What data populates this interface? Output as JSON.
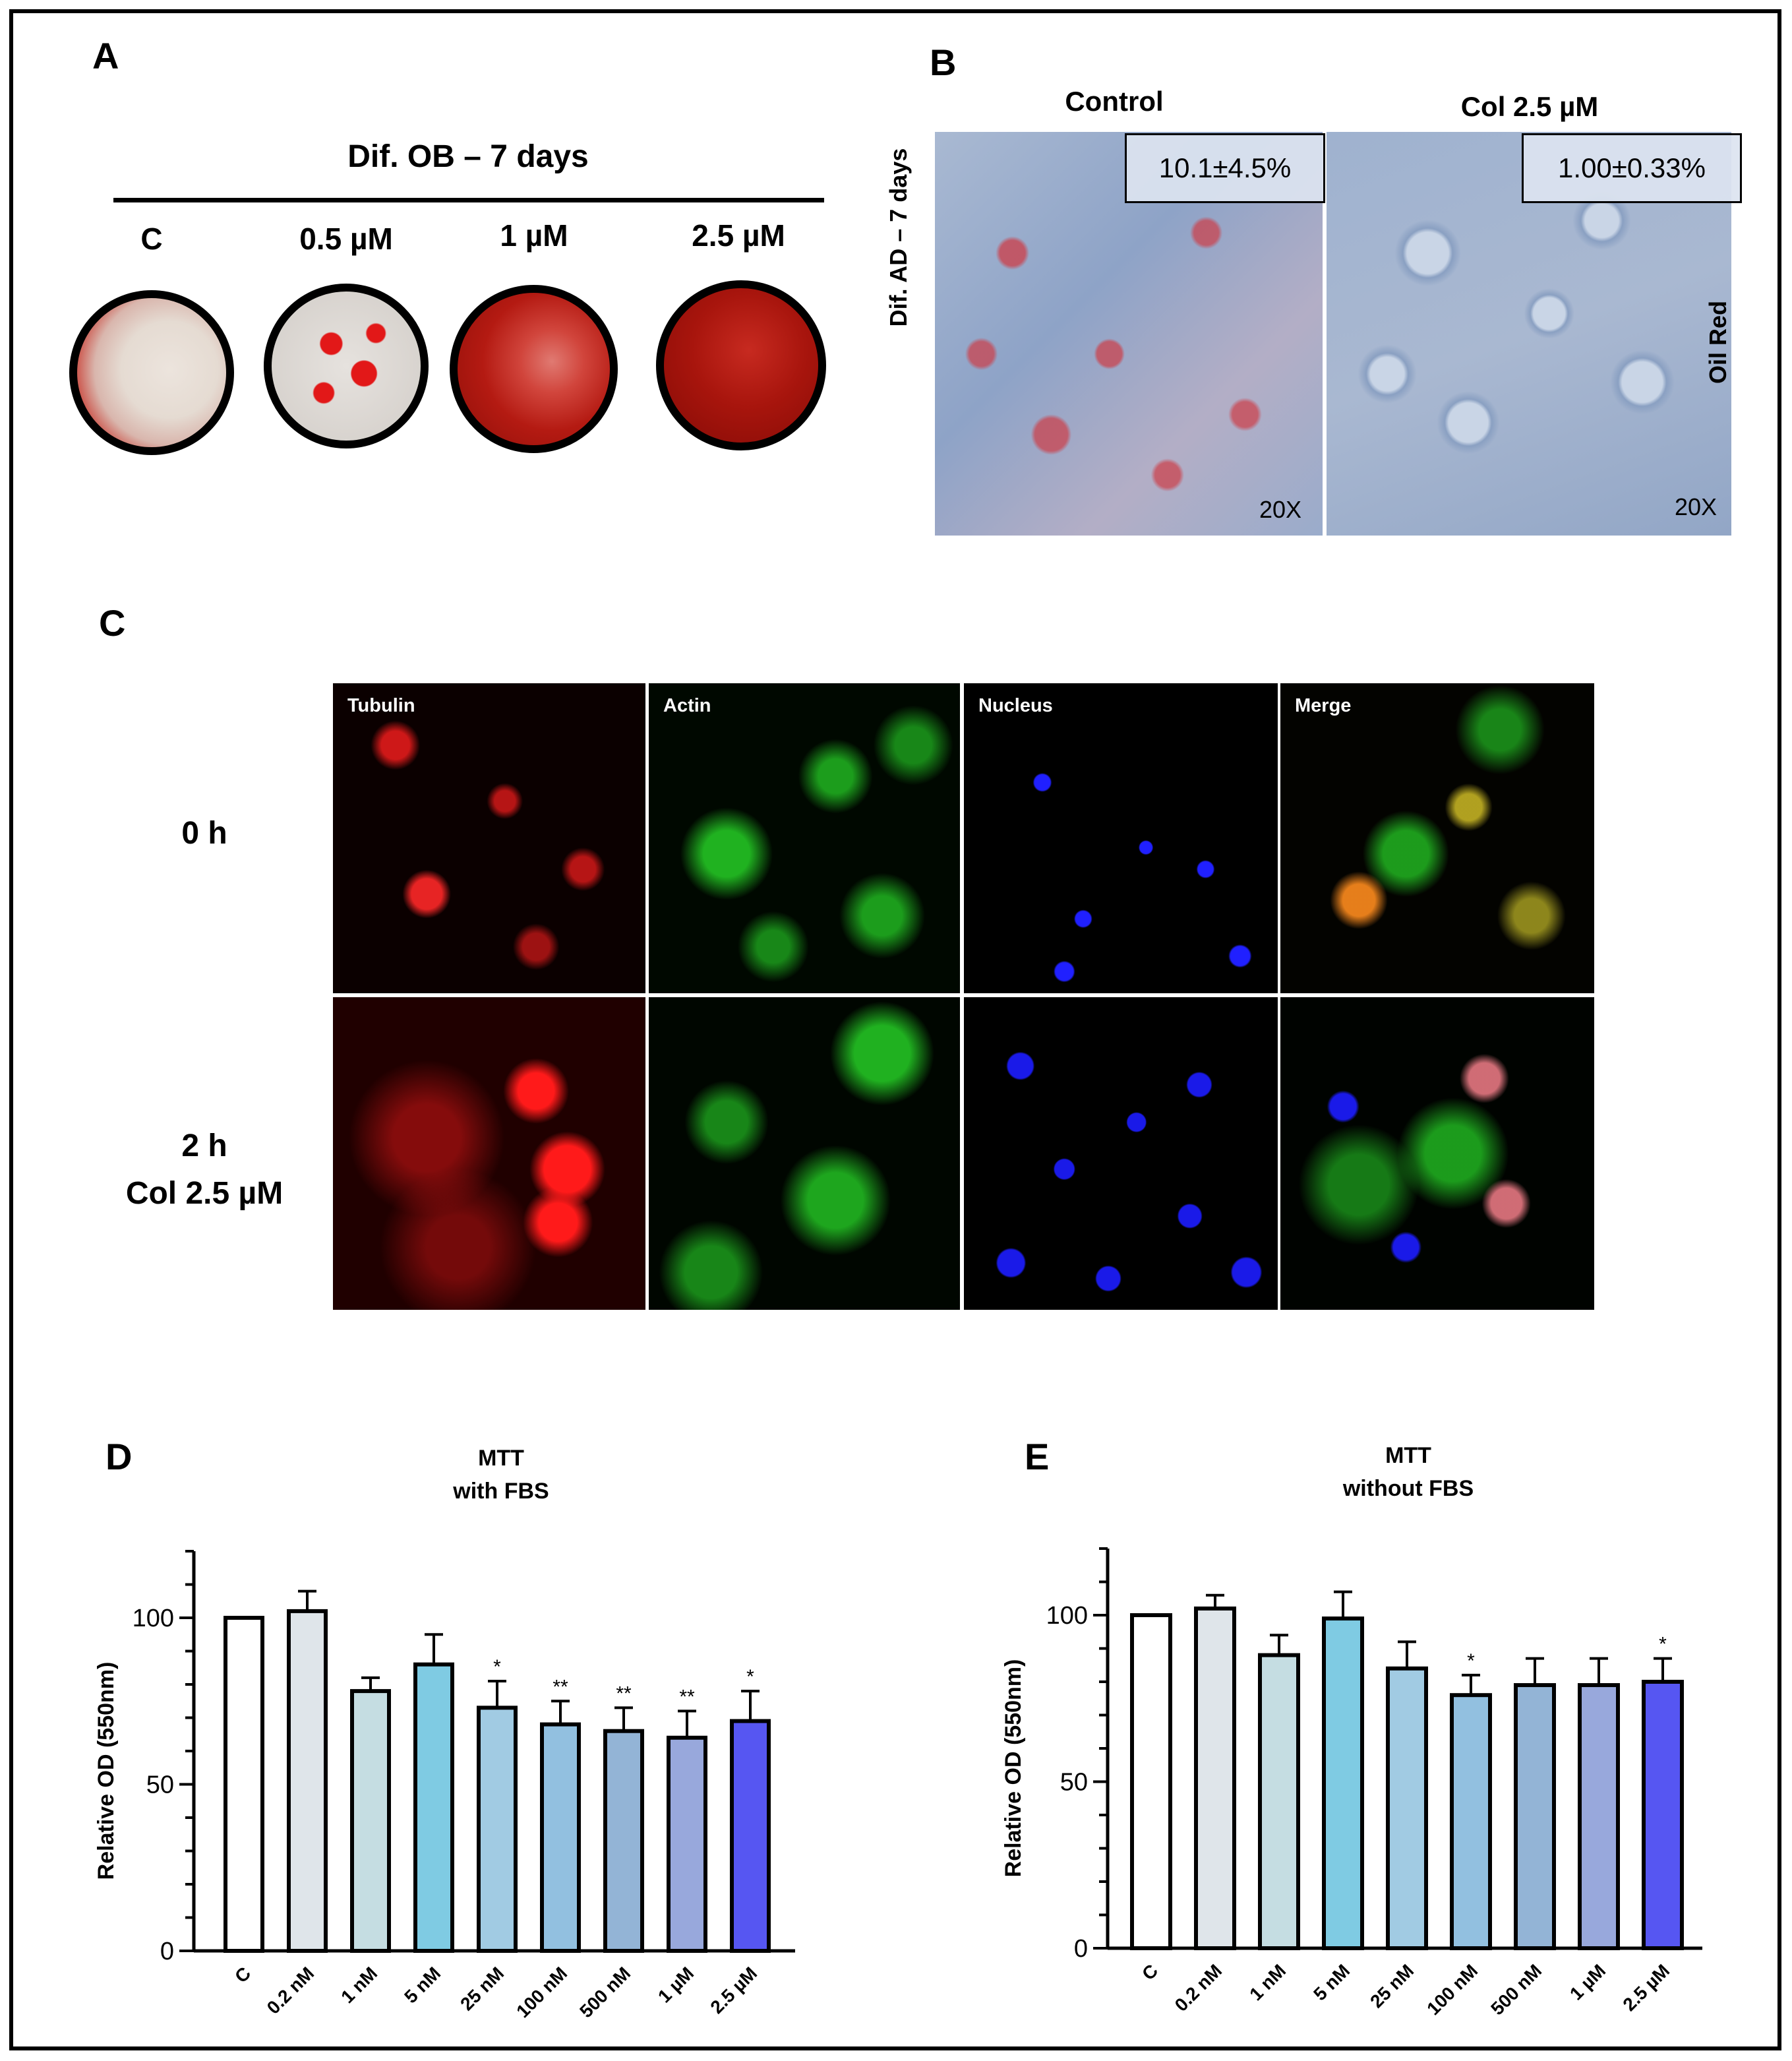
{
  "panel_letters": {
    "a": "A",
    "b": "B",
    "c": "C",
    "d": "D",
    "e": "E"
  },
  "panel_a": {
    "title": "Dif. OB – 7 days",
    "dishes": [
      {
        "label": "C",
        "base": "#e9e0da",
        "accent": "#c83a30"
      },
      {
        "label": "0.5 µM",
        "base": "#d9d4cf",
        "accent": "#e21818"
      },
      {
        "label": "1 µM",
        "base": "#b41a12",
        "accent": "#e0605a"
      },
      {
        "label": "2.5 µM",
        "base": "#9a0f08",
        "accent": "#c72a20"
      }
    ]
  },
  "panel_b": {
    "row_label": "Dif. AD – 7 days",
    "stain_label": "Oil Red",
    "images": [
      {
        "title": "Control",
        "quant": "10.1±4.5%",
        "mag": "20X"
      },
      {
        "title": "Col 2.5 µM",
        "quant": "1.00±0.33%",
        "mag": "20X"
      }
    ]
  },
  "panel_c": {
    "columns": [
      "Tubulin",
      "Actin",
      "Nucleus",
      "Merge"
    ],
    "rows": [
      {
        "line1": "0 h",
        "line2": ""
      },
      {
        "line1": "2 h",
        "line2": "Col 2.5 µM"
      }
    ],
    "colors": {
      "tubulin": "#ff1a1a",
      "actin": "#22dd22",
      "nucleus": "#1a1aff"
    }
  },
  "chart_data": [
    {
      "type": "bar",
      "title": "MTT",
      "subtitle": "with FBS",
      "ylabel": "Relative OD (550nm)",
      "ylim": [
        0,
        120
      ],
      "yticks": [
        0,
        50,
        100
      ],
      "categories": [
        "C",
        "0.2 nM",
        "1 nM",
        "5 nM",
        "25 nM",
        "100 nM",
        "500 nM",
        "1 µM",
        "2.5 µM"
      ],
      "values": [
        100,
        102,
        78,
        86,
        73,
        68,
        66,
        64,
        69
      ],
      "errors": [
        0,
        6,
        4,
        9,
        8,
        7,
        7,
        8,
        9
      ],
      "significance": [
        "",
        "",
        "",
        "",
        "*",
        "**",
        "**",
        "**",
        "*"
      ],
      "colors": [
        "#ffffff",
        "#dfe5ea",
        "#c5dde2",
        "#7fcbe3",
        "#a1cbe3",
        "#92c0e0",
        "#93b4d6",
        "#98a8dc",
        "#5656f2"
      ],
      "grid": false
    },
    {
      "type": "bar",
      "title": "MTT",
      "subtitle": "without FBS",
      "ylabel": "Relative OD (550nm)",
      "ylim": [
        0,
        120
      ],
      "yticks": [
        0,
        50,
        100
      ],
      "categories": [
        "C",
        "0.2 nM",
        "1 nM",
        "5 nM",
        "25 nM",
        "100 nM",
        "500 nM",
        "1 µM",
        "2.5 µM"
      ],
      "values": [
        100,
        102,
        88,
        99,
        84,
        76,
        79,
        79,
        80
      ],
      "errors": [
        0,
        4,
        6,
        8,
        8,
        6,
        8,
        8,
        7
      ],
      "significance": [
        "",
        "",
        "",
        "",
        "",
        "*",
        "",
        "",
        "*"
      ],
      "colors": [
        "#ffffff",
        "#dfe5ea",
        "#c5dde2",
        "#7fcbe3",
        "#a1cbe3",
        "#92c0e0",
        "#93b4d6",
        "#98a8dc",
        "#5656f2"
      ],
      "grid": false
    }
  ]
}
